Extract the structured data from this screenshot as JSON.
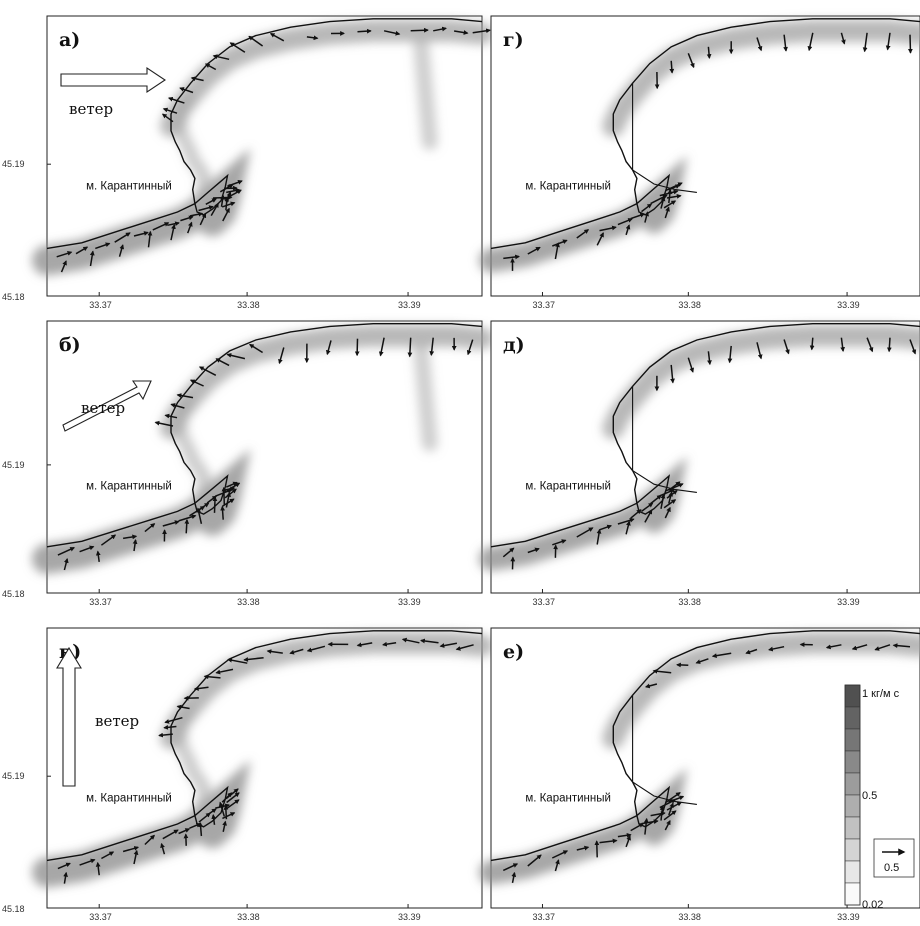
{
  "chart_data": {
    "type": "vector-field",
    "legend": {
      "colorbar_top": "1 кг/м с",
      "colorbar_mid": "0.5",
      "colorbar_bottom": "0.02",
      "vector_scale": "0.5",
      "levels": 10
    },
    "panels": [
      {
        "id": "a",
        "label": "а)",
        "wind_label": "ветер",
        "wind_direction": "east",
        "cape": "м. Карантинный",
        "x_ticks": [
          "33.37",
          "33.38",
          "33.39"
        ],
        "y_ticks": [
          "45.19",
          "45.18"
        ]
      },
      {
        "id": "b",
        "label": "б)",
        "wind_label": "ветер",
        "wind_direction": "north-east",
        "cape": "м. Карантинный",
        "x_ticks": [
          "33.37",
          "33.38",
          "33.39"
        ],
        "y_ticks": [
          "45.19",
          "45.18"
        ]
      },
      {
        "id": "v",
        "label": "в)",
        "wind_label": "ветер",
        "wind_direction": "north",
        "cape": "м. Карантинный",
        "x_ticks": [
          "33.37",
          "33.38",
          "33.39"
        ],
        "y_ticks": [
          "45.19",
          "45.18"
        ]
      },
      {
        "id": "g",
        "label": "г)",
        "cape": "м. Карантинный",
        "x_ticks": [
          "33.37",
          "33.38",
          "33.39"
        ]
      },
      {
        "id": "d",
        "label": "д)",
        "cape": "м. Карантинный",
        "x_ticks": [
          "33.37",
          "33.38",
          "33.39"
        ]
      },
      {
        "id": "e",
        "label": "е)",
        "cape": "м. Карантинный",
        "x_ticks": [
          "33.37",
          "33.38",
          "33.39"
        ]
      }
    ]
  }
}
